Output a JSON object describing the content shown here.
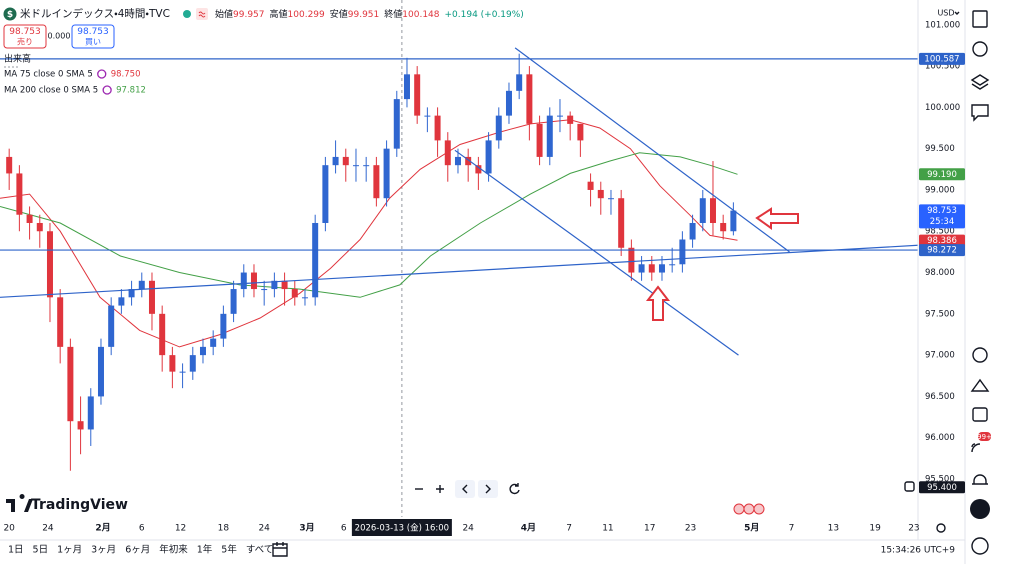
{
  "header": {
    "icon": "$",
    "title": "米ドルインデックス・4時間・TVC",
    "ohlc": [
      {
        "label": "始値",
        "value": "99.957"
      },
      {
        "label": "高値",
        "value": "100.299"
      },
      {
        "label": "安値",
        "value": "99.951"
      },
      {
        "label": "終値",
        "value": "100.148"
      }
    ],
    "change": "+0.194 (+0.19%)",
    "sell": {
      "price": "98.753",
      "label": "売り"
    },
    "spread": "0.000",
    "buy": {
      "price": "98.753",
      "label": "買い"
    },
    "volume": "出来高",
    "currency": "USD"
  },
  "footer": {
    "logo": "TradingView",
    "ranges": [
      "1日",
      "5日",
      "1ヶ月",
      "3ヶ月",
      "6ヶ月",
      "年初来",
      "1年",
      "5年",
      "すべて"
    ],
    "clock": "15:34:26 UTC+9",
    "badge": "99+"
  },
  "chart_data": {
    "type": "candlestick",
    "up_color": "#2f66d0",
    "down_color": "#e0353d",
    "xlim": [
      -0.9,
      89.1
    ],
    "ylim": [
      95.04,
      101.3
    ],
    "grid": false,
    "xticks": [
      {
        "value": 0,
        "label": "20"
      },
      {
        "value": 3.8,
        "label": "24"
      },
      {
        "value": 9.2,
        "label": "2月",
        "major": true
      },
      {
        "value": 13,
        "label": "6"
      },
      {
        "value": 16.8,
        "label": "12"
      },
      {
        "value": 21,
        "label": "18"
      },
      {
        "value": 25,
        "label": "24"
      },
      {
        "value": 29.2,
        "label": "3月",
        "major": true
      },
      {
        "value": 32.8,
        "label": "6"
      },
      {
        "value": 45,
        "label": "24"
      },
      {
        "value": 50.9,
        "label": "4月",
        "major": true
      },
      {
        "value": 54.9,
        "label": "7"
      },
      {
        "value": 58.7,
        "label": "11"
      },
      {
        "value": 62.8,
        "label": "17"
      },
      {
        "value": 66.8,
        "label": "23"
      },
      {
        "value": 72.8,
        "label": "5月",
        "major": true
      },
      {
        "value": 76.7,
        "label": "7"
      },
      {
        "value": 80.8,
        "label": "13"
      },
      {
        "value": 84.9,
        "label": "19"
      },
      {
        "value": 88.7,
        "label": "23"
      }
    ],
    "yticks": [
      {
        "value": 95.5,
        "label": "95.500"
      },
      {
        "value": 96,
        "label": "96.000"
      },
      {
        "value": 96.5,
        "label": "96.500"
      },
      {
        "value": 97,
        "label": "97.000"
      },
      {
        "value": 97.5,
        "label": "97.500"
      },
      {
        "value": 98,
        "label": "98.000"
      },
      {
        "value": 98.5,
        "label": "98.500"
      },
      {
        "value": 99,
        "label": "99.000"
      },
      {
        "value": 99.5,
        "label": "99.500"
      },
      {
        "value": 100,
        "label": "100.000"
      },
      {
        "value": 100.5,
        "label": "100.500"
      },
      {
        "value": 101,
        "label": "101.000"
      }
    ],
    "x": [
      0,
      1,
      2,
      3,
      4,
      5,
      6,
      7,
      8,
      9,
      10,
      11,
      12,
      13,
      14,
      15,
      16,
      17,
      18,
      19,
      20,
      21,
      22,
      23,
      24,
      25,
      26,
      27,
      28,
      29,
      30,
      31,
      32,
      33,
      34,
      35,
      36,
      37,
      38,
      39,
      40,
      41,
      42,
      43,
      44,
      45,
      46,
      47,
      48,
      49,
      50,
      51,
      52,
      53,
      54,
      55,
      56,
      57,
      58,
      59,
      60,
      61,
      62,
      63,
      64,
      65,
      66,
      67,
      68,
      69,
      70,
      71
    ],
    "open": [
      99.4,
      99.2,
      98.7,
      98.6,
      98.5,
      97.7,
      97.1,
      96.2,
      96.1,
      96.5,
      97.1,
      97.6,
      97.7,
      97.8,
      97.9,
      97.5,
      97.0,
      96.8,
      96.8,
      97.0,
      97.1,
      97.2,
      97.5,
      97.8,
      98.0,
      97.8,
      97.8,
      97.9,
      97.8,
      97.7,
      97.7,
      98.6,
      99.3,
      99.4,
      99.3,
      99.3,
      99.3,
      98.9,
      99.5,
      100.1,
      100.4,
      99.9,
      99.9,
      99.6,
      99.3,
      99.4,
      99.3,
      99.2,
      99.6,
      99.9,
      100.2,
      100.4,
      99.8,
      99.4,
      99.9,
      99.9,
      99.8,
      99.1,
      99.0,
      98.9,
      98.9,
      98.3,
      98.0,
      98.1,
      98.0,
      98.1,
      98.1,
      98.4,
      98.6,
      98.9,
      98.6,
      98.5
    ],
    "high": [
      99.5,
      99.3,
      98.8,
      98.7,
      98.6,
      97.8,
      97.2,
      96.5,
      96.6,
      97.2,
      97.7,
      97.8,
      97.9,
      98.0,
      98.0,
      97.6,
      97.1,
      96.9,
      97.1,
      97.2,
      97.3,
      97.6,
      97.9,
      98.1,
      98.1,
      97.9,
      98.0,
      98.0,
      97.9,
      97.8,
      98.7,
      99.4,
      99.6,
      99.5,
      99.5,
      99.4,
      99.4,
      99.6,
      100.2,
      100.6,
      100.5,
      100.0,
      100.0,
      99.7,
      99.5,
      99.5,
      99.4,
      99.7,
      100.0,
      100.3,
      100.65,
      100.5,
      99.9,
      100.0,
      100.1,
      99.95,
      99.8,
      99.2,
      99.1,
      99.0,
      99.0,
      98.4,
      98.2,
      98.2,
      98.2,
      98.3,
      98.5,
      98.7,
      99.0,
      99.35,
      98.7,
      98.85
    ],
    "low": [
      99.0,
      98.5,
      98.4,
      98.3,
      97.4,
      96.9,
      95.6,
      95.8,
      95.9,
      96.4,
      97.0,
      97.5,
      97.6,
      97.7,
      97.3,
      96.8,
      96.6,
      96.6,
      96.7,
      96.9,
      97.0,
      97.1,
      97.4,
      97.7,
      97.7,
      97.6,
      97.7,
      97.6,
      97.6,
      97.6,
      97.6,
      98.5,
      99.2,
      99.1,
      99.1,
      99.1,
      98.8,
      98.8,
      99.4,
      100.0,
      99.8,
      99.7,
      99.4,
      99.1,
      99.2,
      99.1,
      99.0,
      99.1,
      99.5,
      99.8,
      100.1,
      99.6,
      99.3,
      99.3,
      99.7,
      99.6,
      99.4,
      98.8,
      98.7,
      98.7,
      98.2,
      97.9,
      97.9,
      97.9,
      97.9,
      98.0,
      98.0,
      98.3,
      98.5,
      98.45,
      98.4,
      98.45
    ],
    "close": [
      99.2,
      98.7,
      98.6,
      98.5,
      97.7,
      97.1,
      96.2,
      96.1,
      96.5,
      97.1,
      97.6,
      97.7,
      97.8,
      97.9,
      97.5,
      97.0,
      96.8,
      96.8,
      97.0,
      97.1,
      97.2,
      97.5,
      97.8,
      98.0,
      97.8,
      97.8,
      97.9,
      97.8,
      97.7,
      97.7,
      98.6,
      99.3,
      99.4,
      99.3,
      99.3,
      99.3,
      98.9,
      99.5,
      100.1,
      100.4,
      99.9,
      99.9,
      99.6,
      99.3,
      99.4,
      99.3,
      99.2,
      99.6,
      99.9,
      100.2,
      100.4,
      99.8,
      99.4,
      99.9,
      99.9,
      99.8,
      99.6,
      99.0,
      98.9,
      98.9,
      98.3,
      98.0,
      98.1,
      98.0,
      98.1,
      98.1,
      98.4,
      98.6,
      98.9,
      98.6,
      98.5,
      98.75
    ],
    "series": [
      {
        "name": "MA 75 close 0 SMA 5",
        "legend_value": "98.750",
        "color": "#e0353d",
        "x": [
          -0.9,
          2.0,
          5.0,
          8.9,
          12.8,
          16.7,
          20.7,
          24.6,
          28.5,
          31.5,
          34.4,
          37.3,
          40.3,
          44.2,
          48.1,
          51.1,
          55.0,
          57.9,
          60.9,
          63.8,
          66.7,
          68.7,
          71.4
        ],
        "values": [
          98.9,
          98.95,
          98.5,
          97.7,
          97.3,
          97.1,
          97.25,
          97.45,
          97.75,
          98.05,
          98.4,
          98.9,
          99.25,
          99.55,
          99.7,
          99.8,
          99.85,
          99.75,
          99.5,
          99.05,
          98.7,
          98.45,
          98.39
        ]
      },
      {
        "name": "MA 200 close 0 SMA 5",
        "legend_value": "97.812",
        "color": "#43a047",
        "x": [
          -0.9,
          5.0,
          10.9,
          16.7,
          22.6,
          28.5,
          34.4,
          38.3,
          41.3,
          46.2,
          51.1,
          55.0,
          58.9,
          61.8,
          65.8,
          68.7,
          71.4
        ],
        "values": [
          98.8,
          98.6,
          98.2,
          98.0,
          97.85,
          97.8,
          97.7,
          97.85,
          98.2,
          98.6,
          98.95,
          99.2,
          99.35,
          99.45,
          99.4,
          99.3,
          99.19
        ]
      }
    ],
    "trend_line_color": "#2e63c9",
    "trend_lines": [
      {
        "x": [
          -0.9,
          89.1
        ],
        "values": [
          100.587,
          100.587
        ]
      },
      {
        "x": [
          -0.9,
          89.1
        ],
        "values": [
          98.272,
          98.272
        ]
      },
      {
        "x": [
          -0.9,
          89.1
        ],
        "values": [
          97.7,
          98.33
        ]
      },
      {
        "x": [
          49.6,
          76.5
        ],
        "values": [
          100.72,
          98.25
        ]
      },
      {
        "x": [
          43.7,
          71.5
        ],
        "values": [
          99.48,
          97.0
        ]
      }
    ],
    "crosshair": {
      "x": 38.5,
      "label": "2026-03-13 (金) 16:00"
    },
    "price_labels": [
      {
        "value": 100.587,
        "label": "100.587",
        "color": "#2e63c9"
      },
      {
        "value": 99.19,
        "label": "99.190",
        "color": "#43a047"
      },
      {
        "value": 98.753,
        "label": "98.753",
        "countdown": "25:34",
        "color": "#2962ff"
      },
      {
        "value": 98.386,
        "label": "98.386",
        "color": "#e0353d"
      },
      {
        "value": 98.272,
        "label": "98.272",
        "color": "#2e63c9"
      },
      {
        "value": 95.4,
        "label": "95.400",
        "color": "#131722"
      }
    ]
  }
}
